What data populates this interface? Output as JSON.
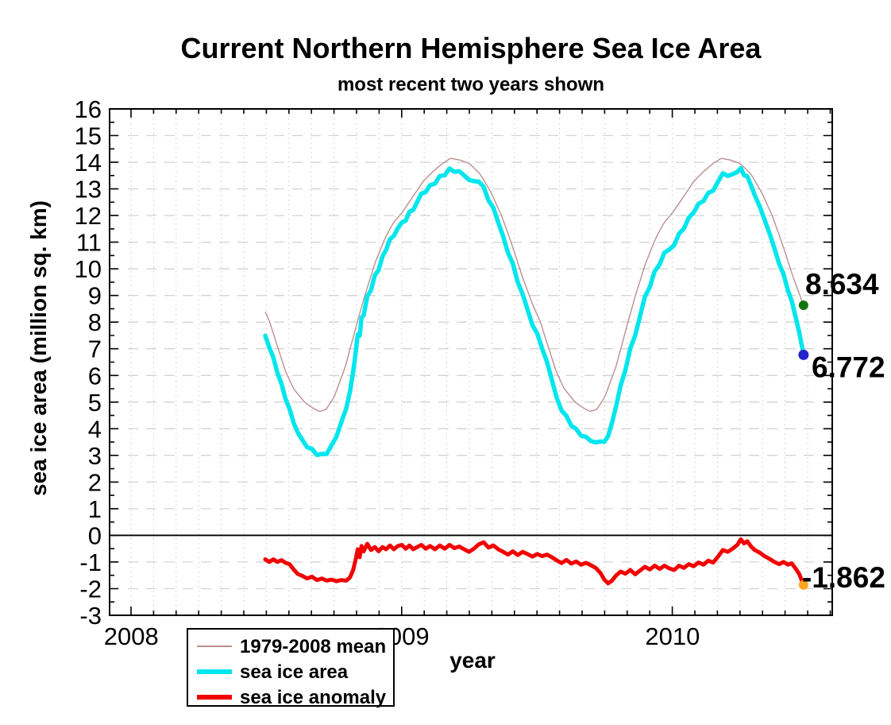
{
  "chart_data": {
    "type": "line",
    "title": "Current Northern Hemisphere Sea Ice Area",
    "subtitle": "most recent two years shown",
    "xlabel": "year",
    "ylabel": "sea ice area (million sq. km)",
    "x_range": [
      2007.92,
      2010.59
    ],
    "y_range": [
      -3,
      16
    ],
    "x_ticks": [
      2008,
      2009,
      2010
    ],
    "x_minor_tick_interval_years": 0.0833333,
    "y_tick_step": 1,
    "y_minor_tick_step": 0.5,
    "grid": {
      "horizontal_style": "dashed",
      "vertical_style": "dotted",
      "horizontal_color": "#d3d3d3",
      "vertical_color": "#c9c9c9"
    },
    "zero_line": {
      "value": 0,
      "color": "#000000"
    },
    "data_start_year": 2008.495,
    "data_end_year": 2010.484,
    "series": {
      "mean_climatology": {
        "name": "1979-2008 mean",
        "color": "#BC8F8F",
        "width": 1.4,
        "note": "seasonal climatology repeated each year; phase = fractional part of year",
        "phase_knots": [
          [
            0.0,
            12.1
          ],
          [
            0.04,
            12.7
          ],
          [
            0.08,
            13.3
          ],
          [
            0.12,
            13.7
          ],
          [
            0.15,
            13.95
          ],
          [
            0.18,
            14.15
          ],
          [
            0.215,
            14.08
          ],
          [
            0.25,
            13.95
          ],
          [
            0.29,
            13.55
          ],
          [
            0.33,
            12.85
          ],
          [
            0.37,
            11.95
          ],
          [
            0.41,
            10.8
          ],
          [
            0.445,
            9.7
          ],
          [
            0.484,
            8.634
          ],
          [
            0.51,
            8.05
          ],
          [
            0.54,
            7.1
          ],
          [
            0.57,
            6.15
          ],
          [
            0.6,
            5.5
          ],
          [
            0.64,
            5.0
          ],
          [
            0.67,
            4.78
          ],
          [
            0.695,
            4.65
          ],
          [
            0.72,
            4.72
          ],
          [
            0.75,
            5.2
          ],
          [
            0.79,
            6.3
          ],
          [
            0.83,
            7.8
          ],
          [
            0.86,
            8.9
          ],
          [
            0.9,
            10.2
          ],
          [
            0.94,
            11.2
          ],
          [
            0.97,
            11.75
          ]
        ],
        "end": {
          "year": 2010.484,
          "value": 8.634,
          "marker_color": "#117711"
        }
      },
      "anomaly": {
        "name": "sea ice anomaly",
        "color": "#F30000",
        "width": 5,
        "points": [
          [
            2008.495,
            -0.9
          ],
          [
            2008.51,
            -1.0
          ],
          [
            2008.525,
            -0.9
          ],
          [
            2008.54,
            -1.0
          ],
          [
            2008.555,
            -0.93
          ],
          [
            2008.57,
            -1.03
          ],
          [
            2008.585,
            -1.08
          ],
          [
            2008.6,
            -1.28
          ],
          [
            2008.615,
            -1.45
          ],
          [
            2008.632,
            -1.52
          ],
          [
            2008.65,
            -1.62
          ],
          [
            2008.668,
            -1.55
          ],
          [
            2008.686,
            -1.68
          ],
          [
            2008.704,
            -1.62
          ],
          [
            2008.722,
            -1.7
          ],
          [
            2008.74,
            -1.66
          ],
          [
            2008.758,
            -1.72
          ],
          [
            2008.776,
            -1.68
          ],
          [
            2008.794,
            -1.7
          ],
          [
            2008.808,
            -1.58
          ],
          [
            2008.82,
            -1.3
          ],
          [
            2008.83,
            -0.88
          ],
          [
            2008.837,
            -0.52
          ],
          [
            2008.844,
            -0.82
          ],
          [
            2008.851,
            -0.4
          ],
          [
            2008.859,
            -0.6
          ],
          [
            2008.872,
            -0.32
          ],
          [
            2008.886,
            -0.55
          ],
          [
            2008.9,
            -0.44
          ],
          [
            2008.914,
            -0.6
          ],
          [
            2008.928,
            -0.44
          ],
          [
            2008.942,
            -0.52
          ],
          [
            2008.956,
            -0.38
          ],
          [
            2008.97,
            -0.52
          ],
          [
            2008.985,
            -0.4
          ],
          [
            2009.0,
            -0.36
          ],
          [
            2009.014,
            -0.5
          ],
          [
            2009.028,
            -0.38
          ],
          [
            2009.042,
            -0.52
          ],
          [
            2009.056,
            -0.44
          ],
          [
            2009.072,
            -0.36
          ],
          [
            2009.088,
            -0.5
          ],
          [
            2009.104,
            -0.4
          ],
          [
            2009.122,
            -0.52
          ],
          [
            2009.14,
            -0.38
          ],
          [
            2009.158,
            -0.5
          ],
          [
            2009.176,
            -0.36
          ],
          [
            2009.194,
            -0.48
          ],
          [
            2009.212,
            -0.42
          ],
          [
            2009.23,
            -0.52
          ],
          [
            2009.248,
            -0.62
          ],
          [
            2009.266,
            -0.5
          ],
          [
            2009.284,
            -0.34
          ],
          [
            2009.302,
            -0.26
          ],
          [
            2009.32,
            -0.46
          ],
          [
            2009.338,
            -0.38
          ],
          [
            2009.356,
            -0.52
          ],
          [
            2009.374,
            -0.62
          ],
          [
            2009.392,
            -0.72
          ],
          [
            2009.41,
            -0.6
          ],
          [
            2009.428,
            -0.74
          ],
          [
            2009.446,
            -0.62
          ],
          [
            2009.464,
            -0.7
          ],
          [
            2009.482,
            -0.8
          ],
          [
            2009.5,
            -0.7
          ],
          [
            2009.518,
            -0.78
          ],
          [
            2009.536,
            -0.72
          ],
          [
            2009.554,
            -0.82
          ],
          [
            2009.572,
            -0.94
          ],
          [
            2009.59,
            -1.04
          ],
          [
            2009.608,
            -0.92
          ],
          [
            2009.626,
            -1.06
          ],
          [
            2009.644,
            -0.98
          ],
          [
            2009.662,
            -1.1
          ],
          [
            2009.68,
            -1.03
          ],
          [
            2009.698,
            -1.12
          ],
          [
            2009.716,
            -1.22
          ],
          [
            2009.734,
            -1.42
          ],
          [
            2009.748,
            -1.66
          ],
          [
            2009.762,
            -1.8
          ],
          [
            2009.776,
            -1.7
          ],
          [
            2009.79,
            -1.52
          ],
          [
            2009.808,
            -1.36
          ],
          [
            2009.826,
            -1.44
          ],
          [
            2009.844,
            -1.3
          ],
          [
            2009.862,
            -1.46
          ],
          [
            2009.88,
            -1.32
          ],
          [
            2009.898,
            -1.18
          ],
          [
            2009.916,
            -1.28
          ],
          [
            2009.934,
            -1.14
          ],
          [
            2009.952,
            -1.26
          ],
          [
            2009.97,
            -1.14
          ],
          [
            2009.988,
            -1.24
          ],
          [
            2010.006,
            -1.3
          ],
          [
            2010.024,
            -1.14
          ],
          [
            2010.042,
            -1.22
          ],
          [
            2010.06,
            -1.08
          ],
          [
            2010.078,
            -1.16
          ],
          [
            2010.096,
            -1.02
          ],
          [
            2010.114,
            -1.1
          ],
          [
            2010.132,
            -0.95
          ],
          [
            2010.15,
            -1.02
          ],
          [
            2010.168,
            -0.8
          ],
          [
            2010.186,
            -0.55
          ],
          [
            2010.204,
            -0.62
          ],
          [
            2010.222,
            -0.5
          ],
          [
            2010.24,
            -0.35
          ],
          [
            2010.252,
            -0.15
          ],
          [
            2010.264,
            -0.3
          ],
          [
            2010.276,
            -0.22
          ],
          [
            2010.29,
            -0.42
          ],
          [
            2010.304,
            -0.55
          ],
          [
            2010.322,
            -0.65
          ],
          [
            2010.34,
            -0.78
          ],
          [
            2010.358,
            -0.88
          ],
          [
            2010.376,
            -1.0
          ],
          [
            2010.394,
            -1.08
          ],
          [
            2010.41,
            -1.0
          ],
          [
            2010.426,
            -1.1
          ],
          [
            2010.44,
            -1.05
          ],
          [
            2010.455,
            -1.25
          ],
          [
            2010.468,
            -1.45
          ],
          [
            2010.484,
            -1.862
          ]
        ],
        "end": {
          "year": 2010.484,
          "value": -1.862,
          "marker_color": "#FFA520"
        }
      },
      "area": {
        "name": "sea ice area",
        "color": "#00E6EE",
        "width": 5.5,
        "derivation": "sea_ice_area(t) = mean_climatology(phase of t) + anomaly(t)",
        "end": {
          "year": 2010.484,
          "value": 6.772,
          "marker_color": "#2424CD"
        }
      }
    },
    "end_labels": {
      "mean": {
        "text": "8.634",
        "color": "#BC8F8F"
      },
      "area": {
        "text": "6.772",
        "color": "#00E6EE"
      },
      "anomaly": {
        "text": "-1.862",
        "color": "#F30000"
      }
    },
    "legend": {
      "position": "below-axis-left",
      "entries": [
        {
          "label": "1979-2008 mean",
          "color": "#BC8F8F"
        },
        {
          "label": "sea ice area",
          "color": "#00E6EE"
        },
        {
          "label": "sea ice anomaly",
          "color": "#F30000"
        }
      ]
    }
  }
}
